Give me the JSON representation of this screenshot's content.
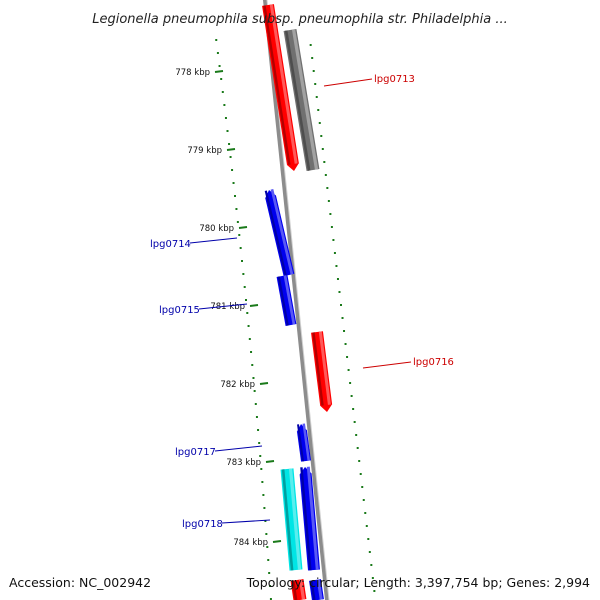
{
  "title": "Legionella pneumophila subsp. pneumophila str. Philadelphia ...",
  "footer": {
    "accession": "Accession: NC_002942",
    "summary": "Topology: circular; Length: 3,397,754 bp; Genes: 2,994"
  },
  "colors": {
    "forward_gene": "#ff0000",
    "reverse_gene": "#0000ee",
    "grey_gene": "#707070",
    "cyan_gene": "#00e5e5",
    "backbone": "#8c8c8c",
    "tick": "#1a7a1a",
    "forward_label": "#cc0000",
    "reverse_label": "#0000aa"
  },
  "scale": {
    "ticks": [
      "778 kbp",
      "779 kbp",
      "780 kbp",
      "781 kbp",
      "782 kbp",
      "783 kbp",
      "784 kbp"
    ]
  },
  "genes": [
    {
      "label": "lpg0713",
      "strand": "forward"
    },
    {
      "label": "lpg0714",
      "strand": "reverse"
    },
    {
      "label": "lpg0715",
      "strand": "reverse"
    },
    {
      "label": "lpg0716",
      "strand": "forward"
    },
    {
      "label": "lpg0717",
      "strand": "reverse"
    },
    {
      "label": "lpg0718",
      "strand": "reverse"
    }
  ]
}
